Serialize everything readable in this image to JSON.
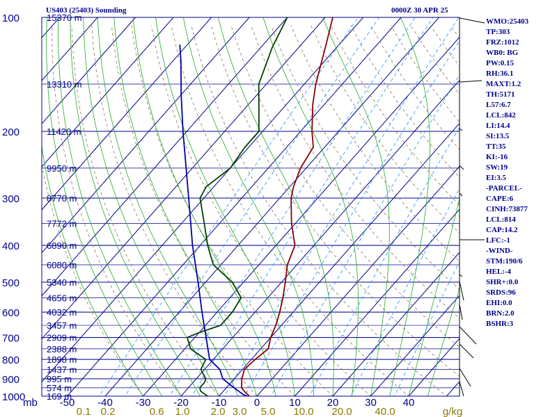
{
  "header": {
    "title": "US403 (25403) Sounding",
    "timestamp": "0000Z 30 APR 25"
  },
  "indices": [
    "WMO:25403",
    "TP:303",
    "FRZ:1012",
    "WB0: BG",
    "PW:0.15",
    "RH:36.1",
    "MAXT:1.2",
    "TH:5171",
    "L57:6.7",
    "LCL:842",
    "LI:14.4",
    "SI:13.5",
    "TT:35",
    "KI:-16",
    "SW:19",
    "EI:3.5",
    "-PARCEL-",
    "CAPE:6",
    "CINH:73877",
    "LCL:814",
    "CAP:14.2",
    "LFC:-1",
    "-WIND-",
    "STM:190/6",
    "HEL:-4",
    "SHR+:0.0",
    "SRDS:96",
    "EHI:0.0",
    "BRN:2.0",
    "BSHR:3"
  ],
  "chart_data": {
    "type": "line",
    "subtype": "skew-T log-P thermodynamic diagram",
    "x_axis": {
      "label": "",
      "unit": "°C",
      "ticks": [
        -50,
        -40,
        -30,
        -20,
        -10,
        0,
        10,
        20,
        30,
        40
      ],
      "tick_labels": [
        "-50",
        "-40",
        "-30",
        "-20",
        "-10",
        "0",
        "10",
        "20",
        "30",
        "40"
      ]
    },
    "y_axis": {
      "label": "mb",
      "scale": "log",
      "range": [
        1000,
        100
      ],
      "ticks": [
        100,
        200,
        300,
        400,
        500,
        600,
        700,
        800,
        900,
        1000
      ],
      "tick_labels": [
        "100",
        "200",
        "300",
        "400",
        "500",
        "600",
        "700",
        "800",
        "900",
        "1000"
      ]
    },
    "mixing_ratio_labels": [
      "0.1",
      "0.2",
      "0.6",
      "1.0",
      "2.0",
      "3.0",
      "5.0",
      "10.0",
      "20.0",
      "40.0",
      "g/kg"
    ],
    "height_levels": [
      {
        "p": 100,
        "label": "15370 m"
      },
      {
        "p": 150,
        "label": "13310 m"
      },
      {
        "p": 200,
        "label": "11420 m"
      },
      {
        "p": 250,
        "label": "9950 m"
      },
      {
        "p": 300,
        "label": "8770 m"
      },
      {
        "p": 350,
        "label": "7772 m"
      },
      {
        "p": 400,
        "label": "6890 m"
      },
      {
        "p": 450,
        "label": "6080 m"
      },
      {
        "p": 500,
        "label": "5340 m"
      },
      {
        "p": 550,
        "label": "4656 m"
      },
      {
        "p": 600,
        "label": "4032 m"
      },
      {
        "p": 650,
        "label": "3457 m"
      },
      {
        "p": 700,
        "label": "2909 m"
      },
      {
        "p": 750,
        "label": "2388 m"
      },
      {
        "p": 800,
        "label": "1898 m"
      },
      {
        "p": 850,
        "label": "1437 m"
      },
      {
        "p": 900,
        "label": "995 m"
      },
      {
        "p": 950,
        "label": "574 m"
      },
      {
        "p": 1000,
        "label": "169 m"
      }
    ],
    "series": [
      {
        "name": "",
        "color": "#8b0000",
        "points": [
          [
            1012,
            -1
          ],
          [
            1000,
            -2
          ],
          [
            970,
            -4.5
          ],
          [
            950,
            -6
          ],
          [
            900,
            -8
          ],
          [
            850,
            -9.5
          ],
          [
            800,
            -9
          ],
          [
            750,
            -8
          ],
          [
            700,
            -10
          ],
          [
            650,
            -11.5
          ],
          [
            600,
            -13.5
          ],
          [
            550,
            -16
          ],
          [
            500,
            -19
          ],
          [
            450,
            -22.5
          ],
          [
            400,
            -25
          ],
          [
            350,
            -31
          ],
          [
            300,
            -37
          ],
          [
            280,
            -39
          ],
          [
            250,
            -41.5
          ],
          [
            220,
            -43
          ],
          [
            200,
            -47
          ],
          [
            170,
            -53
          ],
          [
            150,
            -57
          ],
          [
            120,
            -63
          ],
          [
            100,
            -68
          ]
        ]
      },
      {
        "name": "",
        "color": "#004000",
        "points": [
          [
            1012,
            -9
          ],
          [
            1000,
            -13
          ],
          [
            970,
            -16
          ],
          [
            950,
            -17
          ],
          [
            920,
            -17
          ],
          [
            900,
            -17.5
          ],
          [
            850,
            -21
          ],
          [
            800,
            -22
          ],
          [
            750,
            -28.5
          ],
          [
            700,
            -32
          ],
          [
            680,
            -30
          ],
          [
            650,
            -26
          ],
          [
            600,
            -26
          ],
          [
            550,
            -27
          ],
          [
            500,
            -33
          ],
          [
            450,
            -42
          ],
          [
            400,
            -48
          ],
          [
            350,
            -54
          ],
          [
            300,
            -61
          ],
          [
            280,
            -62
          ],
          [
            250,
            -60
          ],
          [
            220,
            -61
          ],
          [
            200,
            -61
          ],
          [
            180,
            -65
          ],
          [
            150,
            -72
          ],
          [
            120,
            -77
          ],
          [
            100,
            -80
          ]
        ]
      },
      {
        "name": "",
        "color": "#0000aa",
        "points": [
          [
            1012,
            -1
          ],
          [
            990,
            -4
          ],
          [
            970,
            -6
          ],
          [
            950,
            -8
          ],
          [
            920,
            -11
          ],
          [
            900,
            -13
          ],
          [
            850,
            -16
          ],
          [
            800,
            -21
          ],
          [
            700,
            -27
          ],
          [
            600,
            -34
          ],
          [
            500,
            -42
          ],
          [
            400,
            -52
          ],
          [
            300,
            -64
          ],
          [
            200,
            -81
          ],
          [
            160,
            -90
          ],
          [
            130,
            -98
          ],
          [
            118,
            -102
          ]
        ]
      }
    ],
    "grid": true,
    "wind_barbs": true
  },
  "colors": {
    "frame": "#00008b",
    "isobar": "#00008b",
    "isotherm": "#00008b",
    "dry_adiabat": "#8b7355",
    "moist_adiabat": "#22aa22",
    "mixing_ratio": "#1e90ff",
    "axis_text": "#00008b",
    "mixing_label": "#8b7a00",
    "temperature": "#8b0000",
    "dewpoint": "#004000",
    "parcel": "#0000aa",
    "barb": "#000000"
  },
  "icons": {
    "wind_barb": "wind-barb-icon"
  }
}
